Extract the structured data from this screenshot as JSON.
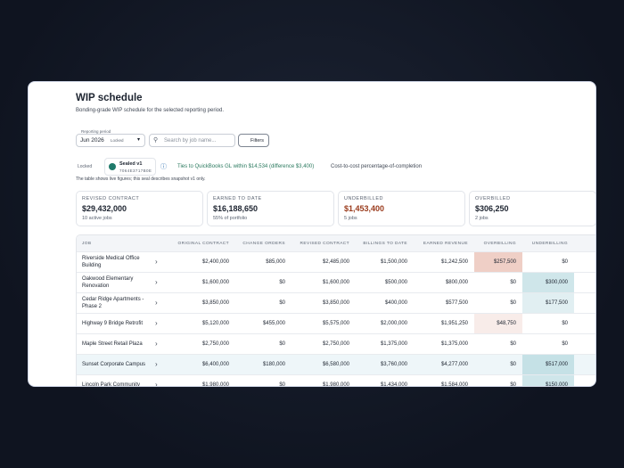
{
  "header": {
    "title": "WIP schedule",
    "subtitle": "Bonding-grade WIP schedule for the selected reporting period."
  },
  "controls": {
    "period_label": "Reporting period",
    "period": "Jun 2026",
    "locked": "Locked",
    "search_placeholder": "Search by job name...",
    "filters": "Filters"
  },
  "seal": {
    "locked": "Locked",
    "sealed": "Sealed v1",
    "hash": "7064E3717B0E",
    "ties": "Ties to QuickBooks GL within $14,534 (difference $3,400)",
    "method": "Cost-to-cost percentage-of-completion",
    "note": "The table shows live figures; this seal describes snapshot v1 only."
  },
  "kpis": [
    {
      "label": "REVISED CONTRACT",
      "value": "$29,432,000",
      "sub": "10 active jobs"
    },
    {
      "label": "EARNED TO DATE",
      "value": "$16,188,650",
      "sub": "55% of portfolio"
    },
    {
      "label": "UNDERBILLED",
      "value": "$1,453,400",
      "sub": "5 jobs"
    },
    {
      "label": "OVERBILLED",
      "value": "$306,250",
      "sub": "2 jobs"
    }
  ],
  "table": {
    "columns": [
      "JOB",
      "ORIGINAL CONTRACT",
      "CHANGE ORDERS",
      "REVISED CONTRACT",
      "BILLINGS TO DATE",
      "EARNED REVENUE",
      "OVERBILLING",
      "UNDERBILLING"
    ],
    "rows": [
      [
        "Riverside Medical Office Building",
        "$2,400,000",
        "$85,000",
        "$2,485,000",
        "$1,500,000",
        "$1,242,500",
        "$257,500",
        "$0"
      ],
      [
        "Oakwood Elementary Renovation",
        "$1,600,000",
        "$0",
        "$1,600,000",
        "$500,000",
        "$800,000",
        "$0",
        "$300,000"
      ],
      [
        "Cedar Ridge Apartments - Phase 2",
        "$3,850,000",
        "$0",
        "$3,850,000",
        "$400,000",
        "$577,500",
        "$0",
        "$177,500"
      ],
      [
        "Highway 9 Bridge Retrofit",
        "$5,120,000",
        "$455,000",
        "$5,575,000",
        "$2,000,000",
        "$1,951,250",
        "$48,750",
        "$0"
      ],
      [
        "Maple Street Retail Plaza",
        "$2,750,000",
        "$0",
        "$2,750,000",
        "$1,375,000",
        "$1,375,000",
        "$0",
        "$0"
      ],
      [
        "Sunset Corporate Campus",
        "$6,400,000",
        "$180,000",
        "$6,580,000",
        "$3,760,000",
        "$4,277,000",
        "$0",
        "$517,000"
      ],
      [
        "Lincoln Park Community",
        "$1,980,000",
        "$0",
        "$1,980,000",
        "$1,434,000",
        "$1,584,000",
        "$0",
        "$150,000"
      ]
    ]
  }
}
